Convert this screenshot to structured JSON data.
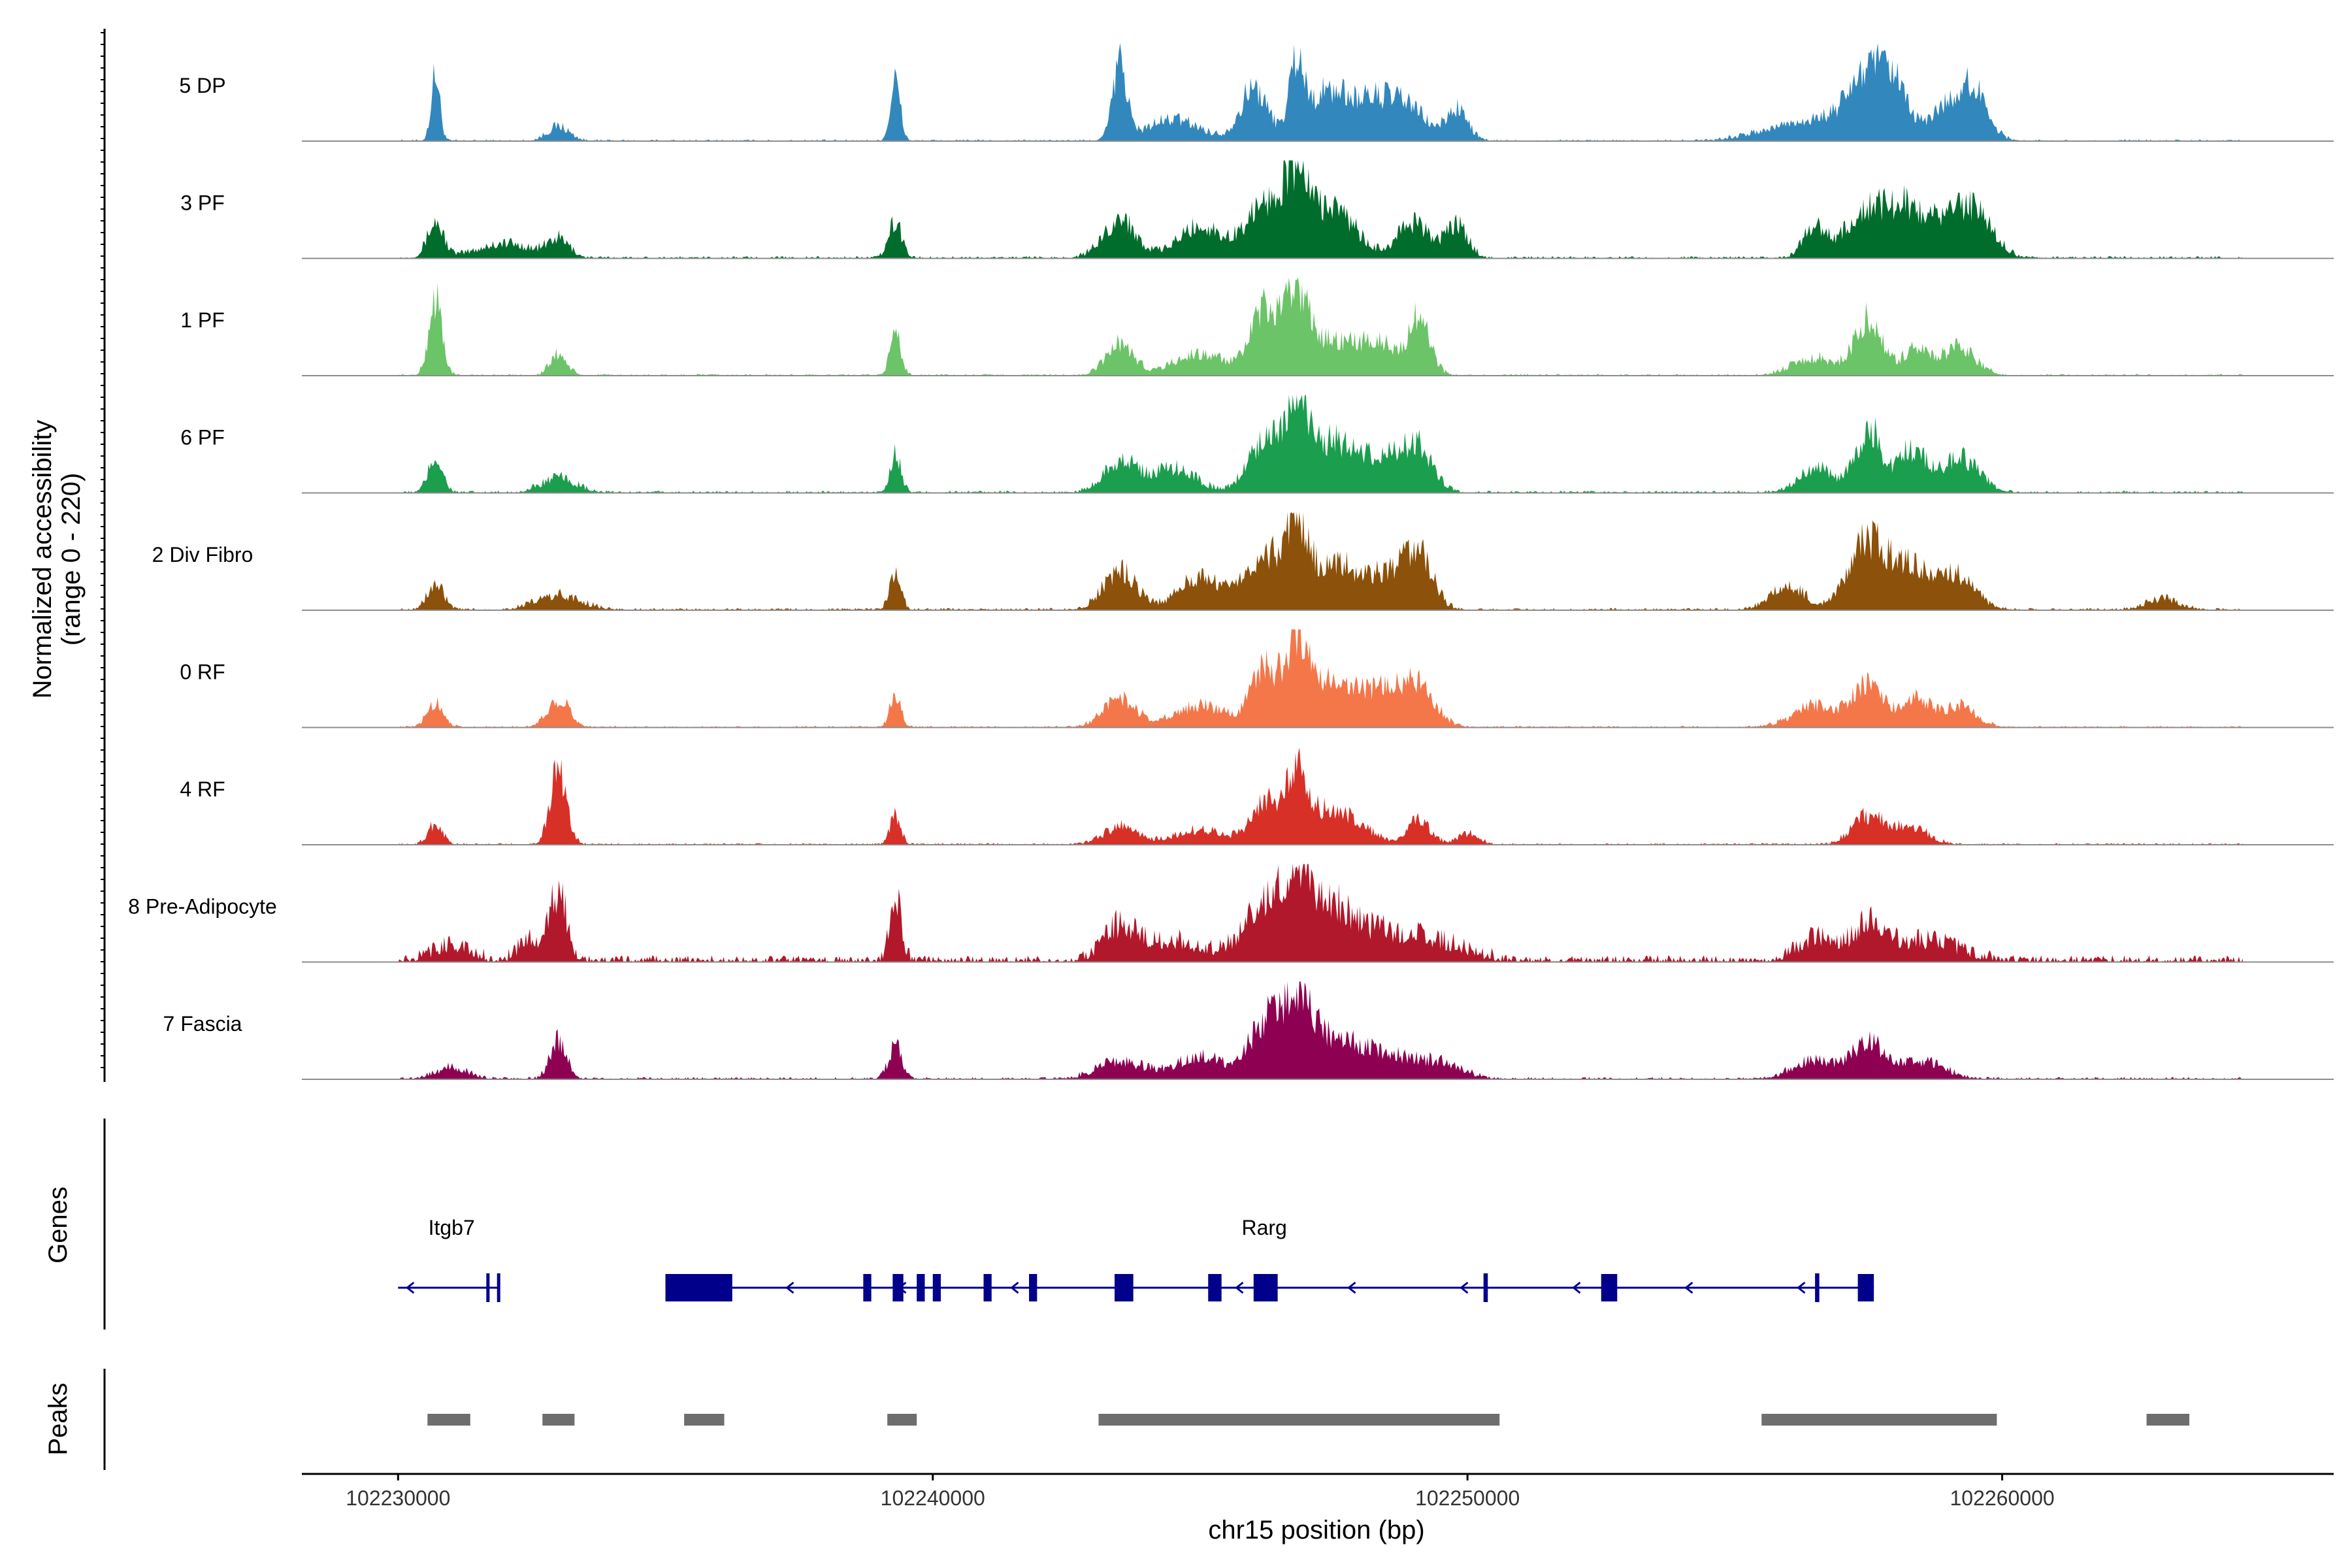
{
  "chart_data": {
    "type": "area",
    "title": "",
    "chromosome": "chr15",
    "xlabel": "chr15 position (bp)",
    "ylabel_line1": "Normalized accessibility",
    "ylabel_line2": "(range 0 - 220)",
    "y_range": [
      0,
      220
    ],
    "xlim": [
      102228200,
      102266200
    ],
    "x_ticks": [
      {
        "value": 102230000,
        "label": "102230000"
      },
      {
        "value": 102240000,
        "label": "102240000"
      },
      {
        "value": 102250000,
        "label": "102250000"
      },
      {
        "value": 102260000,
        "label": "102260000"
      }
    ],
    "region": [
      102230000,
      102264500
    ],
    "tracks": [
      {
        "name": "5 DP",
        "color": "#3288bd",
        "noise": 0.03,
        "peaks": [
          [
            102230700,
            190,
            80
          ],
          [
            102233000,
            40,
            200
          ],
          [
            102239300,
            175,
            90
          ],
          [
            102243500,
            220,
            130
          ],
          [
            102244500,
            60,
            500
          ],
          [
            102246000,
            150,
            250
          ],
          [
            102246800,
            190,
            130
          ],
          [
            102247400,
            140,
            450
          ],
          [
            102248400,
            110,
            400
          ],
          [
            102249000,
            60,
            300
          ],
          [
            102249800,
            90,
            200
          ],
          [
            102257500,
            170,
            350
          ],
          [
            102256500,
            60,
            800
          ],
          [
            102258000,
            110,
            250
          ],
          [
            102259000,
            100,
            350
          ],
          [
            102259500,
            120,
            250
          ]
        ]
      },
      {
        "name": "3 PF",
        "color": "#006d2c",
        "noise": 0.04,
        "peaks": [
          [
            102230700,
            100,
            150
          ],
          [
            102232000,
            40,
            500
          ],
          [
            102233000,
            50,
            200
          ],
          [
            102239300,
            100,
            120
          ],
          [
            102243500,
            110,
            300
          ],
          [
            102245000,
            90,
            400
          ],
          [
            102246200,
            150,
            350
          ],
          [
            102246800,
            200,
            250
          ],
          [
            102247500,
            140,
            400
          ],
          [
            102249000,
            100,
            300
          ],
          [
            102249800,
            90,
            200
          ],
          [
            102256500,
            90,
            200
          ],
          [
            102257500,
            140,
            400
          ],
          [
            102258200,
            110,
            300
          ],
          [
            102259000,
            120,
            400
          ],
          [
            102259600,
            90,
            300
          ]
        ]
      },
      {
        "name": "1 PF",
        "color": "#6bc467",
        "noise": 0.03,
        "peaks": [
          [
            102230700,
            220,
            120
          ],
          [
            102233000,
            60,
            150
          ],
          [
            102239300,
            120,
            100
          ],
          [
            102243500,
            90,
            250
          ],
          [
            102245000,
            60,
            500
          ],
          [
            102246200,
            180,
            250
          ],
          [
            102246800,
            210,
            220
          ],
          [
            102247500,
            100,
            500
          ],
          [
            102248400,
            80,
            300
          ],
          [
            102249100,
            160,
            200
          ],
          [
            102256500,
            50,
            400
          ],
          [
            102257500,
            160,
            250
          ],
          [
            102258400,
            80,
            250
          ],
          [
            102259200,
            80,
            300
          ]
        ]
      },
      {
        "name": "6 PF",
        "color": "#1b9e4e",
        "noise": 0.04,
        "peaks": [
          [
            102230700,
            100,
            130
          ],
          [
            102233000,
            40,
            300
          ],
          [
            102239300,
            110,
            100
          ],
          [
            102243500,
            90,
            300
          ],
          [
            102244500,
            70,
            400
          ],
          [
            102246200,
            150,
            300
          ],
          [
            102246800,
            200,
            250
          ],
          [
            102247500,
            140,
            400
          ],
          [
            102248500,
            100,
            400
          ],
          [
            102249100,
            110,
            250
          ],
          [
            102256500,
            70,
            300
          ],
          [
            102257500,
            180,
            250
          ],
          [
            102258300,
            120,
            250
          ],
          [
            102259200,
            100,
            350
          ]
        ]
      },
      {
        "name": "2 Div Fibro",
        "color": "#8c510a",
        "noise": 0.04,
        "peaks": [
          [
            102230700,
            70,
            150
          ],
          [
            102233000,
            40,
            400
          ],
          [
            102239300,
            110,
            100
          ],
          [
            102243500,
            110,
            300
          ],
          [
            102245000,
            90,
            400
          ],
          [
            102246200,
            150,
            400
          ],
          [
            102246800,
            220,
            200
          ],
          [
            102247500,
            130,
            400
          ],
          [
            102248500,
            100,
            400
          ],
          [
            102249100,
            140,
            250
          ],
          [
            102256000,
            70,
            300
          ],
          [
            102257500,
            200,
            350
          ],
          [
            102258300,
            120,
            300
          ],
          [
            102259100,
            100,
            350
          ],
          [
            102263000,
            30,
            300
          ]
        ]
      },
      {
        "name": "0 RF",
        "color": "#f4774a",
        "noise": 0.03,
        "peaks": [
          [
            102230700,
            70,
            150
          ],
          [
            102233000,
            80,
            200
          ],
          [
            102239300,
            90,
            100
          ],
          [
            102243500,
            80,
            300
          ],
          [
            102245000,
            60,
            500
          ],
          [
            102246200,
            160,
            250
          ],
          [
            102246800,
            210,
            220
          ],
          [
            102247500,
            130,
            450
          ],
          [
            102248500,
            90,
            400
          ],
          [
            102249100,
            100,
            300
          ],
          [
            102256500,
            60,
            400
          ],
          [
            102257500,
            120,
            300
          ],
          [
            102258400,
            80,
            250
          ],
          [
            102259200,
            60,
            300
          ]
        ]
      },
      {
        "name": "4 RF",
        "color": "#d73027",
        "noise": 0.03,
        "peaks": [
          [
            102230700,
            60,
            130
          ],
          [
            102233000,
            220,
            150
          ],
          [
            102239300,
            80,
            100
          ],
          [
            102243500,
            50,
            300
          ],
          [
            102245000,
            40,
            500
          ],
          [
            102246200,
            120,
            250
          ],
          [
            102246800,
            190,
            200
          ],
          [
            102247500,
            100,
            500
          ],
          [
            102249100,
            70,
            200
          ],
          [
            102250000,
            30,
            200
          ],
          [
            102257500,
            80,
            300
          ],
          [
            102258300,
            50,
            300
          ]
        ]
      },
      {
        "name": "8 Pre-Adipocyte",
        "color": "#b2182b",
        "noise": 0.12,
        "peaks": [
          [
            102231000,
            40,
            300
          ],
          [
            102233000,
            190,
            150
          ],
          [
            102232500,
            60,
            200
          ],
          [
            102239300,
            200,
            100
          ],
          [
            102243500,
            90,
            300
          ],
          [
            102244500,
            50,
            500
          ],
          [
            102246200,
            140,
            400
          ],
          [
            102246800,
            190,
            300
          ],
          [
            102247500,
            140,
            400
          ],
          [
            102248500,
            70,
            500
          ],
          [
            102249500,
            40,
            500
          ],
          [
            102256500,
            60,
            300
          ],
          [
            102257500,
            100,
            300
          ],
          [
            102258500,
            50,
            600
          ]
        ]
      },
      {
        "name": "7 Fascia",
        "color": "#8e0152",
        "noise": 0.04,
        "peaks": [
          [
            102231000,
            30,
            300
          ],
          [
            102233000,
            110,
            150
          ],
          [
            102239300,
            90,
            120
          ],
          [
            102243500,
            50,
            400
          ],
          [
            102245000,
            60,
            500
          ],
          [
            102246200,
            140,
            300
          ],
          [
            102246800,
            180,
            300
          ],
          [
            102247500,
            100,
            500
          ],
          [
            102248500,
            60,
            500
          ],
          [
            102249500,
            40,
            400
          ],
          [
            102256500,
            50,
            400
          ],
          [
            102257500,
            100,
            300
          ],
          [
            102258500,
            50,
            400
          ]
        ]
      }
    ],
    "genes_label": "Genes",
    "genes": [
      {
        "name": "Itgb7",
        "label_pos": 102231000,
        "start": 102230000,
        "end": 102231900,
        "exons": [
          [
            102231650,
            102231700
          ],
          [
            102231850,
            102231900
          ]
        ]
      },
      {
        "name": "Rarg",
        "label_pos": 102246200,
        "start": 102235000,
        "end": 102257600,
        "exons": [
          [
            102235000,
            102236250
          ],
          [
            102238700,
            102238850
          ],
          [
            102239250,
            102239450
          ],
          [
            102239700,
            102239850
          ],
          [
            102240000,
            102240150
          ],
          [
            102240950,
            102241100
          ],
          [
            102241800,
            102241950
          ],
          [
            102243400,
            102243750
          ],
          [
            102245150,
            102245400
          ],
          [
            102246000,
            102246450
          ],
          [
            102250300,
            102250380
          ],
          [
            102252500,
            102252800
          ],
          [
            102256500,
            102256580
          ],
          [
            102257300,
            102257600
          ]
        ]
      }
    ],
    "peaks_label": "Peaks",
    "peaks": [
      [
        102230550,
        102231350
      ],
      [
        102232700,
        102233300
      ],
      [
        102235350,
        102236100
      ],
      [
        102239150,
        102239700
      ],
      [
        102243100,
        102250600
      ],
      [
        102255500,
        102259900
      ],
      [
        102262700,
        102263500
      ]
    ],
    "colors": {
      "gene": "#00008b",
      "peak": "#6e6e6e",
      "baseline": "#8c8c8c",
      "axis": "#000000"
    }
  }
}
